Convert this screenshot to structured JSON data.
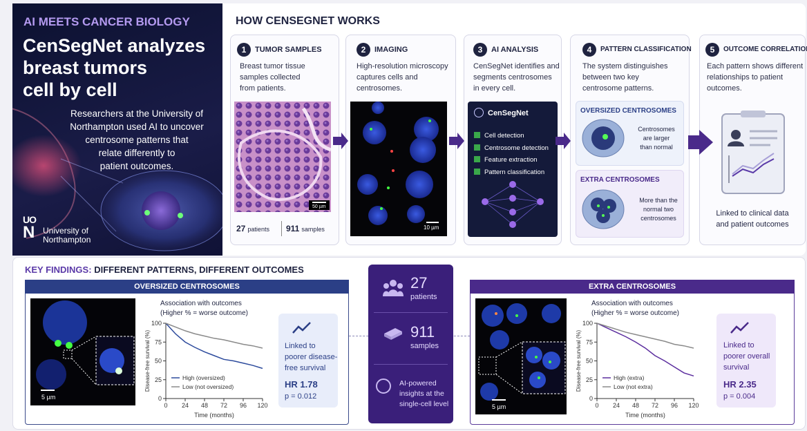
{
  "intro": {
    "kicker": "AI MEETS CANCER BIOLOGY",
    "title_lines": [
      "CenSegNet analyzes",
      "breast tumors",
      "cell by cell"
    ],
    "text_lines": [
      "Researchers at the University of",
      "Northampton used AI to uncover",
      "centrosome patterns that",
      "relate differently to",
      "patient outcomes."
    ],
    "logo_lines": [
      "UO",
      "N"
    ],
    "university_lines": [
      "University of",
      "Northampton"
    ]
  },
  "stats": {
    "patients": "27",
    "patients_label": "patients",
    "samples": "911",
    "samples_label": "samples"
  },
  "how": {
    "title": "HOW CENSEGNET WORKS",
    "steps": [
      {
        "number": "1",
        "title": "TUMOR SAMPLES",
        "text_lines": [
          "Breast tumor tissue",
          "samples collected",
          "from patients."
        ],
        "scale": "50 µm"
      },
      {
        "number": "2",
        "title": "IMAGING",
        "text_lines": [
          "High-resolution microscopy",
          "captures cells and",
          "centrosomes."
        ],
        "scale": "10 µm"
      },
      {
        "number": "3",
        "title": "AI ANALYSIS",
        "text_lines": [
          "CenSegNet identifies and",
          "segments centrosomes",
          "in every cell."
        ],
        "panel_title": "CenSegNet",
        "items": [
          "Cell detection",
          "Centrosome detection",
          "Feature extraction",
          "Pattern classification"
        ]
      },
      {
        "number": "4",
        "title": "PATTERN CLASSIFICATION",
        "text_lines": [
          "The system distinguishes",
          "between two key",
          "centrosome patterns."
        ],
        "patterns": [
          {
            "title": "OVERSIZED CENTROSOMES",
            "text_lines": [
              "Centrosomes",
              "are larger",
              "than normal"
            ]
          },
          {
            "title": "EXTRA CENTROSOMES",
            "text_lines": [
              "More than the",
              "normal two",
              "centrosomes"
            ]
          }
        ]
      },
      {
        "number": "5",
        "title": "OUTCOME CORRELATION",
        "text_lines": [
          "Each pattern shows different",
          "relationships to patient",
          "outcomes."
        ],
        "caption_lines": [
          "Linked to clinical data",
          "and patient outcomes"
        ]
      }
    ]
  },
  "findings": {
    "title_accent": "KEY FINDINGS:",
    "title_rest": "DIFFERENT PATTERNS, DIFFERENT OUTCOMES",
    "cards": [
      {
        "header": "OVERSIZED CENTROSOMES",
        "scale": "5 µm",
        "info_lines": [
          "Linked to",
          "poorer disease-",
          "free survival"
        ],
        "hr": "HR 1.78",
        "p": "p = 0.012"
      },
      {
        "header": "EXTRA CENTROSOMES",
        "scale": "5 µm",
        "info_lines": [
          "Linked to",
          "poorer overall",
          "survival"
        ],
        "hr": "HR 2.35",
        "p": "p = 0.004"
      }
    ],
    "ai_lines": [
      "AI-powered",
      "insights at the",
      "single-cell level"
    ]
  },
  "chart_data": [
    {
      "type": "line",
      "title": "Association with outcomes",
      "subtitle": "(Higher % = worse outcome)",
      "x_label": "Time (months)",
      "y_label": "Disease-free survival (%)",
      "x": [
        0,
        12,
        24,
        36,
        48,
        60,
        72,
        84,
        96,
        108,
        120
      ],
      "series": [
        {
          "name": "High (oversized)",
          "color": "#2c4a9c",
          "values": [
            100,
            86,
            75,
            68,
            62,
            57,
            52,
            50,
            47,
            44,
            40
          ]
        },
        {
          "name": "Low (not oversized)",
          "color": "#8a8a8a",
          "values": [
            100,
            95,
            90,
            86,
            83,
            80,
            78,
            75,
            72,
            70,
            67
          ]
        }
      ],
      "xlim": [
        0,
        120
      ],
      "ylim": [
        0,
        100
      ],
      "xticks": [
        0,
        24,
        48,
        72,
        96,
        120
      ],
      "yticks": [
        0,
        25,
        50,
        75,
        100
      ]
    },
    {
      "type": "line",
      "title": "Association with outcomes",
      "subtitle": "(Higher % = worse outcome)",
      "x_label": "Time (months)",
      "y_label": "Disease-free survival (%)",
      "x": [
        0,
        12,
        24,
        36,
        48,
        60,
        72,
        84,
        96,
        108,
        120
      ],
      "series": [
        {
          "name": "High (extra)",
          "color": "#5b2d9e",
          "values": [
            100,
            94,
            88,
            82,
            75,
            67,
            57,
            50,
            42,
            34,
            30
          ]
        },
        {
          "name": "Low (not extra)",
          "color": "#8a8a8a",
          "values": [
            100,
            96,
            92,
            88,
            85,
            82,
            79,
            76,
            72,
            70,
            67
          ]
        }
      ],
      "xlim": [
        0,
        120
      ],
      "ylim": [
        0,
        100
      ],
      "xticks": [
        0,
        24,
        48,
        72,
        96,
        120
      ],
      "yticks": [
        0,
        25,
        50,
        75,
        100
      ]
    }
  ]
}
